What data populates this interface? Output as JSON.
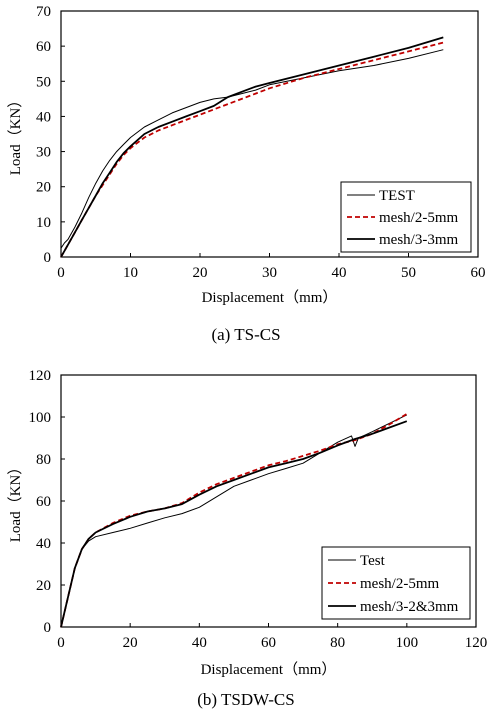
{
  "chart_data": [
    {
      "type": "line",
      "caption": "(a) TS-CS",
      "xlabel": "Displacement（mm）",
      "ylabel": "Load（KN）",
      "xlim": [
        0,
        60
      ],
      "ylim": [
        0,
        70
      ],
      "xticks": [
        0,
        10,
        20,
        30,
        40,
        50,
        60
      ],
      "yticks": [
        0,
        10,
        20,
        30,
        40,
        50,
        60,
        70
      ],
      "grid": false,
      "legend_position": "bottom-right",
      "series": [
        {
          "name": "TEST",
          "color": "#000000",
          "style": "thin",
          "x": [
            0,
            0.5,
            1,
            2,
            3,
            4,
            5,
            6,
            7,
            8,
            9,
            10,
            12,
            14,
            16,
            18,
            20,
            22,
            24,
            26,
            28,
            30,
            35,
            40,
            45,
            50,
            55
          ],
          "y": [
            2.5,
            4,
            5,
            8.5,
            12.5,
            17,
            21,
            24.5,
            27.5,
            30,
            32,
            34,
            37,
            39,
            41,
            42.5,
            44,
            45,
            45.5,
            46.5,
            47.5,
            49,
            51,
            53,
            54.5,
            56.5,
            59
          ]
        },
        {
          "name": "mesh/2-5mm",
          "color": "#c00000",
          "style": "dashed",
          "x": [
            0,
            1,
            2,
            3,
            4,
            5,
            6,
            7,
            8,
            9,
            10,
            12,
            14,
            16,
            18,
            20,
            22,
            24,
            26,
            28,
            30,
            35,
            40,
            45,
            50,
            55
          ],
          "y": [
            0,
            3.5,
            7,
            10.5,
            14,
            17.5,
            20.5,
            23.5,
            26.5,
            29,
            31,
            34,
            36,
            37.5,
            39,
            40.5,
            42,
            43.5,
            45,
            46.5,
            48,
            51,
            53.5,
            56,
            58.5,
            61
          ]
        },
        {
          "name": "mesh/3-3mm",
          "color": "#000000",
          "style": "thick",
          "x": [
            0,
            1,
            2,
            3,
            4,
            5,
            6,
            7,
            8,
            9,
            10,
            12,
            14,
            16,
            18,
            20,
            22,
            24,
            26,
            28,
            30,
            35,
            40,
            45,
            50,
            55
          ],
          "y": [
            0,
            3.5,
            7,
            10.5,
            14,
            17.5,
            21,
            24,
            27,
            29.5,
            31.5,
            35,
            37,
            38.5,
            40,
            41.5,
            43,
            45.5,
            47,
            48.5,
            49.5,
            52,
            54.5,
            57,
            59.5,
            62.5
          ]
        }
      ]
    },
    {
      "type": "line",
      "caption": "(b) TSDW-CS",
      "xlabel": "Displacement（mm）",
      "ylabel": "Load（KN）",
      "xlim": [
        0,
        120
      ],
      "ylim": [
        0,
        120
      ],
      "xticks": [
        0,
        20,
        40,
        60,
        80,
        100,
        120
      ],
      "yticks": [
        0,
        20,
        40,
        60,
        80,
        100,
        120
      ],
      "grid": false,
      "legend_position": "bottom-right",
      "series": [
        {
          "name": "Test",
          "color": "#000000",
          "style": "thin",
          "x": [
            0,
            2,
            4,
            6,
            8,
            10,
            15,
            20,
            25,
            30,
            35,
            40,
            45,
            50,
            55,
            60,
            65,
            70,
            75,
            80,
            84,
            85,
            85.5,
            86,
            88,
            90,
            95,
            100
          ],
          "y": [
            0,
            14,
            28,
            37,
            41,
            43,
            45,
            47,
            49.5,
            52,
            54,
            57,
            62,
            67,
            70,
            73,
            75.5,
            78,
            83,
            88,
            91,
            86,
            88,
            90,
            91.5,
            93,
            97,
            101
          ]
        },
        {
          "name": "mesh/2-5mm",
          "color": "#c00000",
          "style": "dashed",
          "x": [
            0,
            2,
            4,
            6,
            8,
            10,
            15,
            20,
            25,
            30,
            35,
            40,
            45,
            50,
            55,
            60,
            65,
            70,
            75,
            80,
            85,
            90,
            95,
            100
          ],
          "y": [
            0,
            14,
            28,
            37,
            42,
            45,
            49.5,
            53,
            55,
            56.5,
            59,
            64,
            68,
            71,
            74,
            77,
            79,
            81.5,
            84,
            87,
            89,
            92,
            96.5,
            101.5
          ]
        },
        {
          "name": "mesh/3-2&3mm",
          "color": "#000000",
          "style": "thick",
          "x": [
            0,
            2,
            4,
            6,
            8,
            10,
            15,
            20,
            25,
            30,
            35,
            40,
            45,
            50,
            55,
            60,
            65,
            70,
            75,
            80,
            85,
            90,
            95,
            100
          ],
          "y": [
            0,
            14,
            28,
            37,
            42,
            45,
            49,
            52.5,
            55,
            56.5,
            58.5,
            63,
            67,
            70,
            73,
            76,
            78,
            80,
            83,
            86.5,
            89.5,
            92,
            95,
            98
          ]
        }
      ]
    }
  ]
}
